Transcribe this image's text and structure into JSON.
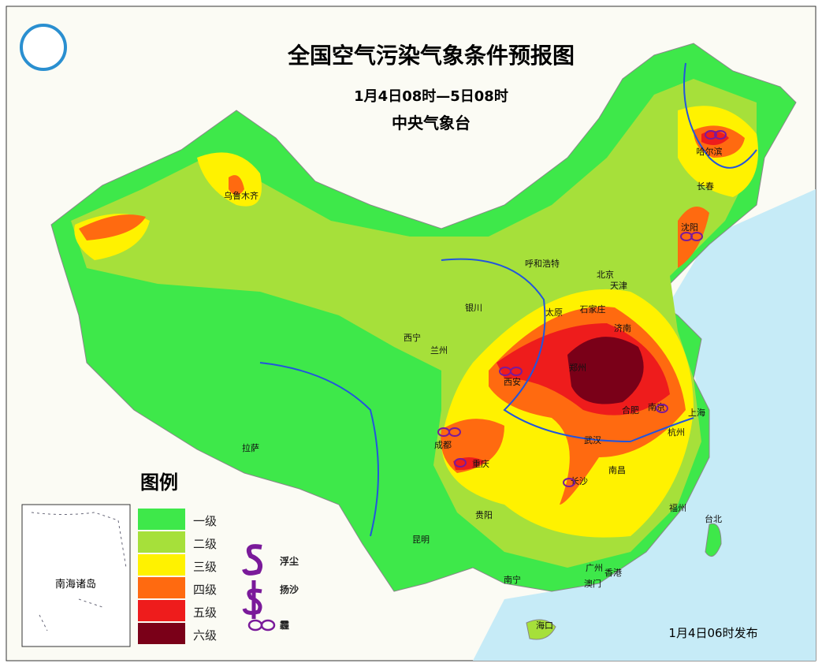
{
  "header": {
    "title": "全国空气污染气象条件预报图",
    "period": "1月4日08时—5日08时",
    "issuer": "中央气象台"
  },
  "legend": {
    "title": "图例",
    "levels": [
      "一级",
      "二级",
      "三级",
      "四级",
      "五级",
      "六级"
    ],
    "symbols": [
      "浮尘",
      "扬沙",
      "霾"
    ]
  },
  "inset": {
    "label": "南海诸岛"
  },
  "footer": {
    "issued": "1月4日06时发布"
  },
  "cities": [
    "乌鲁木齐",
    "哈尔滨",
    "长春",
    "沈阳",
    "北京",
    "天津",
    "呼和浩特",
    "石家庄",
    "太原",
    "济南",
    "银川",
    "西宁",
    "兰州",
    "西安",
    "郑州",
    "合肥",
    "南京",
    "上海",
    "杭州",
    "武汉",
    "成都",
    "重庆",
    "长沙",
    "南昌",
    "贵阳",
    "福州",
    "台北",
    "拉萨",
    "昆明",
    "南宁",
    "广州",
    "香港",
    "澳门",
    "海口"
  ]
}
